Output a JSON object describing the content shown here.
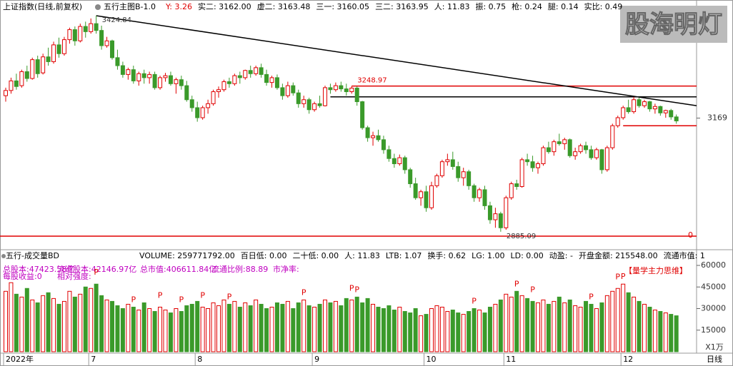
{
  "header": {
    "title": "上证指数(日线,前复权)",
    "indicator": "五行主图B-1.0",
    "stats": [
      "Y: 3.26",
      "实二: 3162.00",
      "虚二: 3163.48",
      "三一: 3160.05",
      "三二: 3163.95",
      "人: 11.83",
      "振: 0.75",
      "枪: 0.24",
      "腿: 0.14",
      "实比: 0.49"
    ],
    "watermark": "股海明灯"
  },
  "chart_data": {
    "type": "candlestick",
    "ylim": [
      2858,
      3432
    ],
    "yticks": [
      3169
    ],
    "annotations": [
      {
        "index": 17,
        "value": 3424.84,
        "label": "3424.84"
      },
      {
        "index": 93,
        "value": 2885.09,
        "label": "2885.09"
      },
      {
        "index": 65,
        "value": 3248.97,
        "label": "3248.97"
      }
    ],
    "bottom_label": "0",
    "trendline": [
      3424.84,
      3200
    ],
    "hlines": [
      {
        "value": 3248.97,
        "color": "#e00000"
      },
      {
        "value": 3222,
        "color": "#000000"
      },
      {
        "value": 3150,
        "color": "#e00000"
      }
    ],
    "xticks": [
      {
        "value": 0,
        "label": "2022年"
      },
      {
        "value": 16,
        "label": "7"
      },
      {
        "value": 36,
        "label": "8"
      },
      {
        "value": 58,
        "label": "9"
      },
      {
        "value": 79,
        "label": "10"
      },
      {
        "value": 94,
        "label": "11"
      },
      {
        "value": 116,
        "label": "12"
      }
    ],
    "period": "日线",
    "up_color": "#e00000",
    "down_color": "#3a9a2a",
    "ohlc": [
      [
        3225,
        3245,
        3210,
        3238
      ],
      [
        3238,
        3270,
        3230,
        3262
      ],
      [
        3262,
        3280,
        3240,
        3248
      ],
      [
        3250,
        3290,
        3245,
        3285
      ],
      [
        3285,
        3300,
        3260,
        3268
      ],
      [
        3268,
        3320,
        3265,
        3315
      ],
      [
        3315,
        3325,
        3270,
        3280
      ],
      [
        3282,
        3330,
        3278,
        3322
      ],
      [
        3322,
        3345,
        3300,
        3310
      ],
      [
        3310,
        3360,
        3305,
        3352
      ],
      [
        3352,
        3370,
        3320,
        3330
      ],
      [
        3330,
        3372,
        3325,
        3365
      ],
      [
        3365,
        3395,
        3355,
        3390
      ],
      [
        3390,
        3398,
        3350,
        3362
      ],
      [
        3362,
        3405,
        3358,
        3398
      ],
      [
        3398,
        3410,
        3370,
        3385
      ],
      [
        3385,
        3418,
        3380,
        3405
      ],
      [
        3405,
        3424.84,
        3380,
        3388
      ],
      [
        3388,
        3400,
        3340,
        3350
      ],
      [
        3350,
        3372,
        3345,
        3362
      ],
      [
        3362,
        3365,
        3315,
        3320
      ],
      [
        3320,
        3340,
        3290,
        3300
      ],
      [
        3300,
        3310,
        3270,
        3278
      ],
      [
        3278,
        3295,
        3265,
        3290
      ],
      [
        3290,
        3300,
        3255,
        3262
      ],
      [
        3262,
        3285,
        3250,
        3280
      ],
      [
        3280,
        3290,
        3255,
        3270
      ],
      [
        3270,
        3285,
        3255,
        3278
      ],
      [
        3278,
        3285,
        3240,
        3245
      ],
      [
        3245,
        3275,
        3240,
        3270
      ],
      [
        3270,
        3282,
        3260,
        3275
      ],
      [
        3275,
        3285,
        3250,
        3255
      ],
      [
        3255,
        3270,
        3230,
        3265
      ],
      [
        3265,
        3275,
        3240,
        3250
      ],
      [
        3250,
        3262,
        3210,
        3215
      ],
      [
        3215,
        3225,
        3185,
        3195
      ],
      [
        3195,
        3210,
        3160,
        3170
      ],
      [
        3170,
        3200,
        3165,
        3195
      ],
      [
        3195,
        3215,
        3180,
        3205
      ],
      [
        3205,
        3240,
        3200,
        3235
      ],
      [
        3235,
        3248,
        3220,
        3240
      ],
      [
        3240,
        3265,
        3235,
        3260
      ],
      [
        3260,
        3270,
        3245,
        3255
      ],
      [
        3255,
        3280,
        3250,
        3275
      ],
      [
        3275,
        3285,
        3255,
        3270
      ],
      [
        3270,
        3290,
        3265,
        3288
      ],
      [
        3288,
        3300,
        3270,
        3280
      ],
      [
        3280,
        3300,
        3275,
        3295
      ],
      [
        3295,
        3305,
        3270,
        3278
      ],
      [
        3278,
        3290,
        3250,
        3258
      ],
      [
        3258,
        3275,
        3245,
        3270
      ],
      [
        3270,
        3278,
        3240,
        3245
      ],
      [
        3245,
        3255,
        3215,
        3225
      ],
      [
        3225,
        3260,
        3220,
        3250
      ],
      [
        3250,
        3258,
        3225,
        3232
      ],
      [
        3232,
        3240,
        3195,
        3205
      ],
      [
        3205,
        3225,
        3195,
        3215
      ],
      [
        3215,
        3220,
        3180,
        3190
      ],
      [
        3190,
        3210,
        3185,
        3205
      ],
      [
        3205,
        3225,
        3195,
        3200
      ],
      [
        3200,
        3250,
        3198,
        3245
      ],
      [
        3245,
        3255,
        3230,
        3240
      ],
      [
        3240,
        3258,
        3235,
        3250
      ],
      [
        3250,
        3260,
        3235,
        3242
      ],
      [
        3242,
        3255,
        3225,
        3235
      ],
      [
        3235,
        3248.97,
        3230,
        3244
      ],
      [
        3244,
        3248,
        3200,
        3210
      ],
      [
        3210,
        3212,
        3140,
        3145
      ],
      [
        3145,
        3150,
        3110,
        3120
      ],
      [
        3120,
        3135,
        3100,
        3125
      ],
      [
        3125,
        3140,
        3110,
        3115
      ],
      [
        3115,
        3125,
        3080,
        3090
      ],
      [
        3090,
        3100,
        3060,
        3068
      ],
      [
        3068,
        3080,
        3045,
        3055
      ],
      [
        3055,
        3078,
        3050,
        3070
      ],
      [
        3070,
        3075,
        3030,
        3040
      ],
      [
        3040,
        3045,
        2995,
        3005
      ],
      [
        3005,
        3020,
        2965,
        2970
      ],
      [
        2970,
        2990,
        2950,
        2985
      ],
      [
        2985,
        3000,
        2935,
        2945
      ],
      [
        2945,
        3010,
        2940,
        3000
      ],
      [
        3000,
        3030,
        2995,
        3025
      ],
      [
        3025,
        3065,
        3020,
        3060
      ],
      [
        3060,
        3080,
        3050,
        3065
      ],
      [
        3065,
        3085,
        3040,
        3048
      ],
      [
        3048,
        3060,
        3010,
        3020
      ],
      [
        3020,
        3045,
        3000,
        3035
      ],
      [
        3035,
        3040,
        2990,
        3000
      ],
      [
        3000,
        3005,
        2960,
        2970
      ],
      [
        2970,
        2995,
        2960,
        2990
      ],
      [
        2990,
        3000,
        2940,
        2950
      ],
      [
        2950,
        2960,
        2905,
        2915
      ],
      [
        2915,
        2945,
        2895,
        2930
      ],
      [
        2930,
        2935,
        2885.09,
        2895
      ],
      [
        2895,
        2975,
        2890,
        2970
      ],
      [
        2970,
        3010,
        2965,
        3005
      ],
      [
        3005,
        3015,
        2990,
        2998
      ],
      [
        2998,
        3070,
        2995,
        3065
      ],
      [
        3065,
        3080,
        3050,
        3060
      ],
      [
        3060,
        3075,
        3035,
        3045
      ],
      [
        3045,
        3060,
        3030,
        3055
      ],
      [
        3055,
        3100,
        3050,
        3095
      ],
      [
        3095,
        3110,
        3080,
        3085
      ],
      [
        3085,
        3115,
        3075,
        3110
      ],
      [
        3110,
        3130,
        3100,
        3105
      ],
      [
        3105,
        3120,
        3090,
        3115
      ],
      [
        3115,
        3118,
        3070,
        3075
      ],
      [
        3075,
        3095,
        3065,
        3085
      ],
      [
        3085,
        3105,
        3080,
        3100
      ],
      [
        3100,
        3110,
        3080,
        3090
      ],
      [
        3090,
        3100,
        3065,
        3070
      ],
      [
        3070,
        3095,
        3065,
        3090
      ],
      [
        3090,
        3092,
        3030,
        3040
      ],
      [
        3040,
        3100,
        3035,
        3095
      ],
      [
        3095,
        3155,
        3090,
        3150
      ],
      [
        3150,
        3175,
        3145,
        3170
      ],
      [
        3170,
        3200,
        3165,
        3195
      ],
      [
        3195,
        3215,
        3180,
        3185
      ],
      [
        3185,
        3222,
        3180,
        3215
      ],
      [
        3215,
        3220,
        3195,
        3200
      ],
      [
        3200,
        3215,
        3195,
        3210
      ],
      [
        3210,
        3212,
        3185,
        3192
      ],
      [
        3192,
        3205,
        3180,
        3198
      ],
      [
        3198,
        3200,
        3175,
        3182
      ],
      [
        3182,
        3190,
        3170,
        3188
      ],
      [
        3188,
        3192,
        3165,
        3172
      ],
      [
        3172,
        3178,
        3155,
        3162
      ]
    ],
    "volume": {
      "title": "五行-成交量BD",
      "stats": [
        "VOLUME: 259771792.00",
        "百日低: 0.00",
        "二十低: 0.00",
        "人: 11.83",
        "LTB: 1.07",
        "换手: 0.62",
        "LG: 1.00",
        "LD: 0.00",
        "动盈: -",
        "开盘金额: 215548.00",
        "流通市值: 1"
      ],
      "info": [
        "总股本:47423.58亿",
        "流通股本:42146.97亿",
        "总市值:406611.84亿",
        "流通比例:88.89",
        "市净率:",
        "每股收益:0",
        "相对强度:"
      ],
      "tag": "【量学主力思维】",
      "unit": "X1万",
      "ylim": [
        0,
        60000
      ],
      "yticks": [
        15000,
        30000,
        45000,
        60000
      ],
      "signals": {
        "17": "P",
        "24": "P",
        "29": "P",
        "33": "P",
        "37": "P",
        "42": "P",
        "56": "P",
        "65": "P",
        "66": "P",
        "88": "P",
        "96": "P",
        "99": "P",
        "110": "P",
        "115": "P",
        "116": "P"
      },
      "values": [
        42000,
        48000,
        40000,
        38000,
        44000,
        36000,
        34000,
        39000,
        41000,
        37000,
        33000,
        35000,
        42000,
        38000,
        40000,
        45000,
        44000,
        47000,
        39000,
        36000,
        35000,
        32000,
        30000,
        33000,
        31000,
        29000,
        34000,
        30000,
        28000,
        31000,
        29000,
        27000,
        30000,
        28000,
        32000,
        33000,
        35000,
        31000,
        30000,
        34000,
        32000,
        36000,
        33000,
        35000,
        31000,
        34000,
        32000,
        36000,
        33000,
        30000,
        31000,
        34000,
        33000,
        35000,
        30000,
        34000,
        36000,
        32000,
        31000,
        33000,
        36000,
        34000,
        35000,
        32000,
        37000,
        36000,
        38000,
        34000,
        37000,
        33000,
        31000,
        30000,
        32000,
        29000,
        31000,
        28000,
        27000,
        30000,
        25000,
        26000,
        30000,
        32000,
        31000,
        28000,
        29000,
        27000,
        26000,
        28000,
        30000,
        29000,
        27000,
        31000,
        33000,
        36000,
        40000,
        38000,
        42000,
        39000,
        37000,
        35000,
        34000,
        36000,
        33000,
        35000,
        38000,
        34000,
        36000,
        32000,
        31000,
        35000,
        33000,
        30000,
        34000,
        39000,
        42000,
        44000,
        47000,
        41000,
        38000,
        35000,
        33000,
        31000,
        29000,
        28000,
        27000,
        26000,
        25000
      ]
    }
  }
}
